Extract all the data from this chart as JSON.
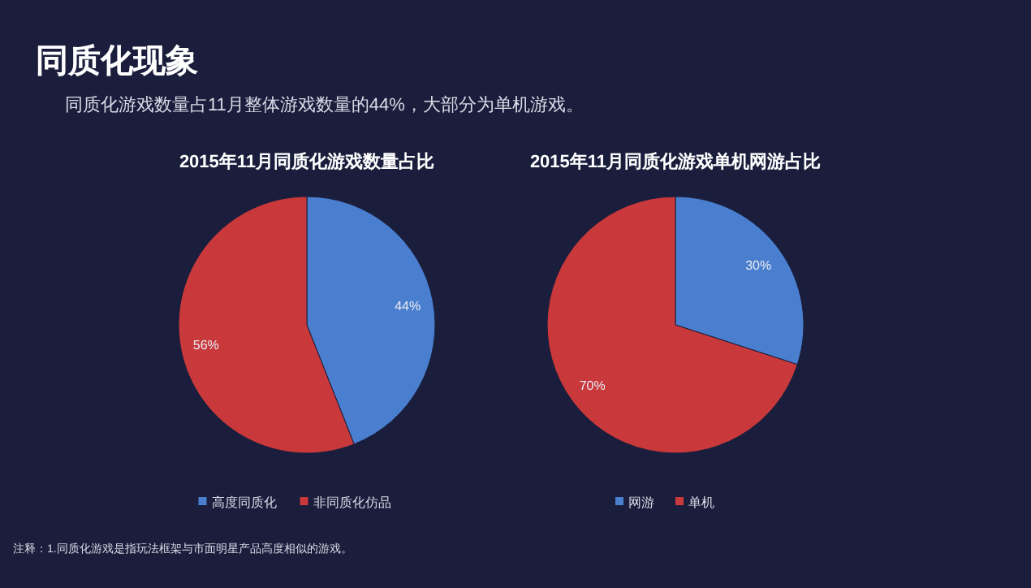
{
  "chart_data": [
    {
      "type": "other",
      "title": "同质化现象",
      "subtitle": "同质化游戏数量占11月整体游戏数量的44%，大部分为单机游戏。",
      "annotations": [
        "注释：1.同质化游戏是指玩法框架与市面明星产品高度相似的游戏。"
      ]
    },
    {
      "type": "pie",
      "title": "2015年11月同质化游戏数量占比",
      "categories": [
        "高度同质化",
        "非同质化仿品"
      ],
      "values": [
        44,
        56
      ],
      "value_labels": [
        "44%",
        "56%"
      ],
      "colors": [
        "#4a7fcf",
        "#c9383a"
      ],
      "legend": "bottom"
    },
    {
      "type": "pie",
      "title": "2015年11月同质化游戏单机网游占比",
      "categories": [
        "网游",
        "单机"
      ],
      "values": [
        30,
        70
      ],
      "value_labels": [
        "30%",
        "70%"
      ],
      "colors": [
        "#4a7fcf",
        "#c9383a"
      ],
      "legend": "bottom"
    }
  ]
}
